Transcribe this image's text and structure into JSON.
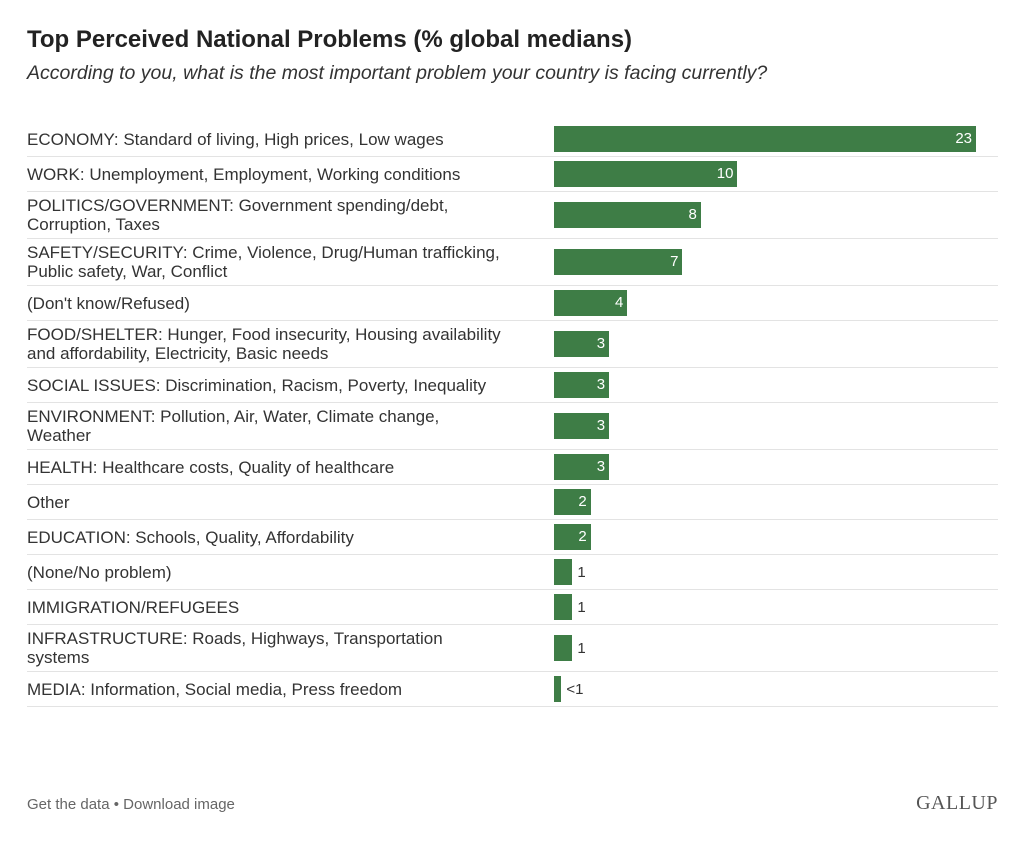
{
  "chart_data": {
    "type": "bar",
    "title": "Top Perceived National Problems (% global medians)",
    "subtitle": "According to you, what is the most important problem your country is facing currently?",
    "categories": [
      "ECONOMY: Standard of living, High prices, Low wages",
      "WORK: Unemployment, Employment, Working conditions",
      "POLITICS/GOVERNMENT: Government spending/debt, Corruption, Taxes",
      "SAFETY/SECURITY: Crime, Violence, Drug/Human trafficking, Public safety, War, Conflict",
      "(Don't know/Refused)",
      "FOOD/SHELTER: Hunger, Food insecurity, Housing availability and affordability, Electricity, Basic needs",
      "SOCIAL ISSUES: Discrimination, Racism, Poverty, Inequality",
      "ENVIRONMENT: Pollution, Air, Water, Climate change, Weather",
      "HEALTH: Healthcare costs, Quality of healthcare",
      "Other",
      "EDUCATION: Schools, Quality, Affordability",
      "(None/No problem)",
      "IMMIGRATION/REFUGEES",
      "INFRASTRUCTURE: Roads, Highways, Transportation systems",
      "MEDIA: Information, Social media, Press freedom"
    ],
    "values": [
      23,
      10,
      8,
      7,
      4,
      3,
      3,
      3,
      3,
      2,
      2,
      1,
      1,
      1,
      0.4
    ],
    "value_labels": [
      "23",
      "10",
      "8",
      "7",
      "4",
      "3",
      "3",
      "3",
      "3",
      "2",
      "2",
      "1",
      "1",
      "1",
      "<1"
    ],
    "color": "#3e7d46"
  },
  "footer": {
    "links": [
      "Get the data",
      "Download image"
    ],
    "separator": "•",
    "logo": "GALLUP"
  }
}
